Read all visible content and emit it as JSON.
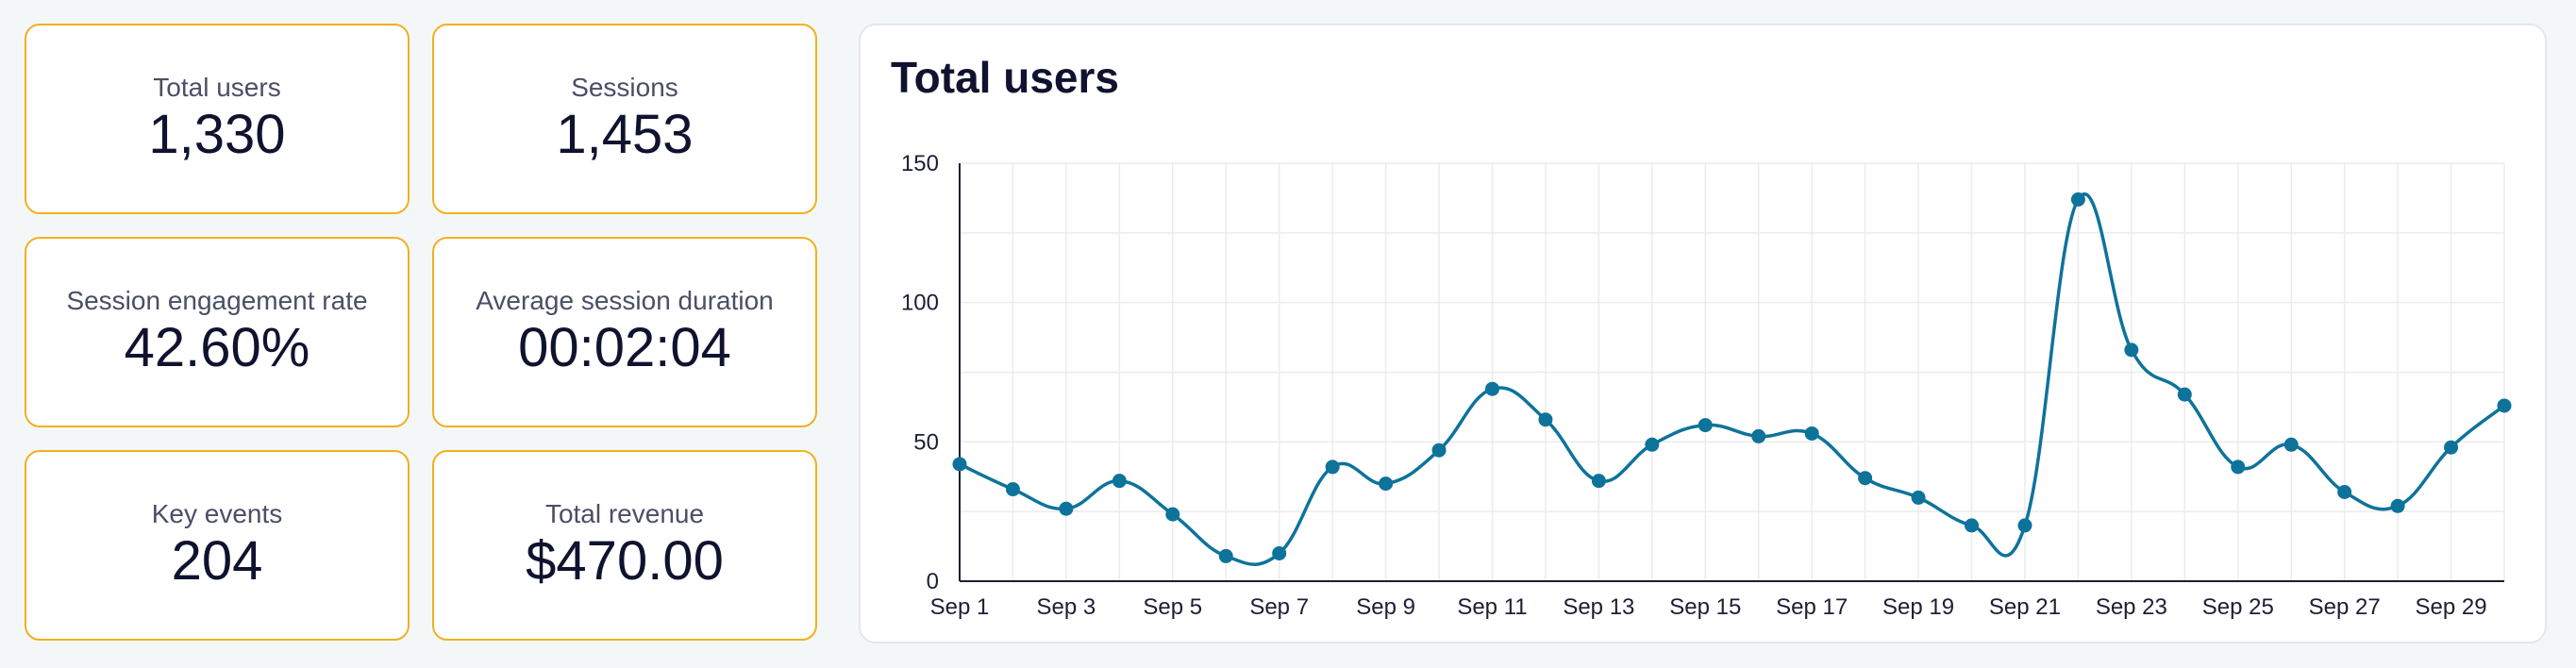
{
  "kpis": [
    {
      "label": "Total users",
      "value": "1,330"
    },
    {
      "label": "Sessions",
      "value": "1,453"
    },
    {
      "label": "Session engagement rate",
      "value": "42.60%"
    },
    {
      "label": "Average session duration",
      "value": "00:02:04"
    },
    {
      "label": "Key events",
      "value": "204"
    },
    {
      "label": "Total revenue",
      "value": "$470.00"
    }
  ],
  "colors": {
    "card_border": "#f1b01f",
    "line": "#0e739a",
    "grid": "#ececec"
  },
  "chart_data": {
    "type": "line",
    "title": "Total users",
    "xlabel": "",
    "ylabel": "",
    "grid": true,
    "legend": "none",
    "x": [
      "Sep 1",
      "Sep 2",
      "Sep 3",
      "Sep 4",
      "Sep 5",
      "Sep 6",
      "Sep 7",
      "Sep 8",
      "Sep 9",
      "Sep 10",
      "Sep 11",
      "Sep 12",
      "Sep 13",
      "Sep 14",
      "Sep 15",
      "Sep 16",
      "Sep 17",
      "Sep 18",
      "Sep 19",
      "Sep 20",
      "Sep 21",
      "Sep 22",
      "Sep 23",
      "Sep 24",
      "Sep 25",
      "Sep 26",
      "Sep 27",
      "Sep 28",
      "Sep 29",
      "Sep 30"
    ],
    "x_tick_labels": [
      "Sep 1",
      "Sep 3",
      "Sep 5",
      "Sep 7",
      "Sep 9",
      "Sep 11",
      "Sep 13",
      "Sep 15",
      "Sep 17",
      "Sep 19",
      "Sep 21",
      "Sep 23",
      "Sep 25",
      "Sep 27",
      "Sep 29"
    ],
    "series": [
      {
        "values": [
          42,
          33,
          26,
          36,
          24,
          9,
          10,
          41,
          35,
          47,
          69,
          58,
          36,
          49,
          56,
          52,
          53,
          37,
          30,
          20,
          20,
          137,
          83,
          67,
          41,
          49,
          32,
          27,
          48,
          63
        ]
      }
    ],
    "ylim": [
      0,
      150
    ],
    "y_ticks": [
      0,
      50,
      100,
      150
    ],
    "y_minor_grid": [
      25,
      75,
      125
    ]
  }
}
